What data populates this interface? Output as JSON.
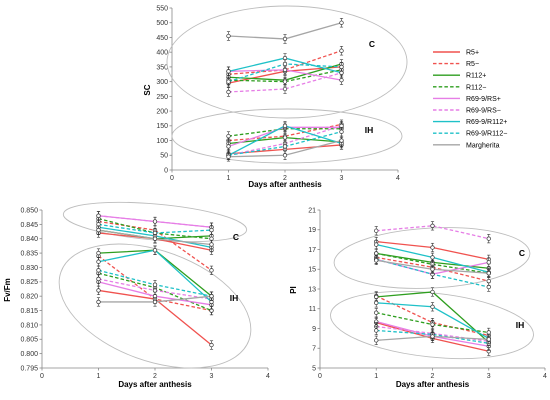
{
  "series_styles": [
    {
      "name": "R5+",
      "color": "#f0524f",
      "dash": false
    },
    {
      "name": "R5−",
      "color": "#f0524f",
      "dash": true
    },
    {
      "name": "R112+",
      "color": "#2e9e1f",
      "dash": false
    },
    {
      "name": "R112−",
      "color": "#2e9e1f",
      "dash": true
    },
    {
      "name": "R69-9/RS+",
      "color": "#e67ee6",
      "dash": false
    },
    {
      "name": "R69-9/RS−",
      "color": "#e67ee6",
      "dash": true
    },
    {
      "name": "R69-9/R112+",
      "color": "#1fc1c8",
      "dash": false
    },
    {
      "name": "R69-9/R112−",
      "color": "#1fc1c8",
      "dash": true
    },
    {
      "name": "Margherita",
      "color": "#a6a6a6",
      "dash": false
    }
  ],
  "chart_data": [
    {
      "type": "line",
      "ylabel": "SC",
      "xlabel": "Days after anthesis",
      "xlim": [
        0,
        4
      ],
      "xticks": [
        0,
        1,
        2,
        3,
        4
      ],
      "ylim": [
        0,
        550
      ],
      "yticks": [
        0,
        50,
        100,
        150,
        200,
        250,
        300,
        350,
        400,
        450,
        500,
        550
      ],
      "grid": false,
      "group_labels": [
        "C",
        "IH"
      ],
      "x": [
        1,
        2,
        3
      ],
      "series": [
        {
          "name": "R5+",
          "values": [
            295,
            335,
            350
          ]
        },
        {
          "name": "R5−",
          "values": [
            325,
            340,
            405
          ]
        },
        {
          "name": "R112+",
          "values": [
            315,
            305,
            360
          ]
        },
        {
          "name": "R112−",
          "values": [
            305,
            300,
            340
          ]
        },
        {
          "name": "R69-9/RS+",
          "values": [
            335,
            340,
            305
          ]
        },
        {
          "name": "R69-9/RS−",
          "values": [
            265,
            275,
            330
          ]
        },
        {
          "name": "R69-9/R112+",
          "values": [
            335,
            380,
            330
          ]
        },
        {
          "name": "R69-9/R112−",
          "values": [
            300,
            360,
            350
          ]
        },
        {
          "name": "Margherita",
          "values": [
            455,
            445,
            500
          ]
        },
        {
          "name": "R5+",
          "values": [
            55,
            70,
            85
          ]
        },
        {
          "name": "R5−",
          "values": [
            100,
            115,
            155
          ]
        },
        {
          "name": "R112+",
          "values": [
            90,
            110,
            95
          ]
        },
        {
          "name": "R112−",
          "values": [
            115,
            140,
            140
          ]
        },
        {
          "name": "R69-9/RS+",
          "values": [
            80,
            145,
            145
          ]
        },
        {
          "name": "R69-9/RS−",
          "values": [
            50,
            90,
            150
          ]
        },
        {
          "name": "R69-9/R112+",
          "values": [
            50,
            150,
            90
          ]
        },
        {
          "name": "R69-9/R112−",
          "values": [
            50,
            80,
            130
          ]
        },
        {
          "name": "Margherita",
          "values": [
            45,
            50,
            100
          ]
        }
      ]
    },
    {
      "type": "line",
      "ylabel": "Fv/Fm",
      "xlabel": "Days after anthesis",
      "xlim": [
        0,
        4
      ],
      "xticks": [
        0,
        1,
        2,
        3,
        4
      ],
      "ylim": [
        0.795,
        0.85
      ],
      "yticks": [
        0.795,
        0.8,
        0.805,
        0.81,
        0.815,
        0.82,
        0.825,
        0.83,
        0.835,
        0.84,
        0.845,
        0.85
      ],
      "ytick_labels": [
        "0.795",
        "0.800",
        "0.805",
        "0.810",
        "0.815",
        "0.820",
        "0.825",
        "0.830",
        "0.835",
        "0.840",
        "0.845",
        "0.850"
      ],
      "grid": false,
      "group_labels": [
        "C",
        "IH"
      ],
      "x": [
        1,
        2,
        3
      ],
      "series": [
        {
          "name": "R5+",
          "values": [
            0.842,
            0.84,
            0.836
          ]
        },
        {
          "name": "R5−",
          "values": [
            0.846,
            0.843,
            0.829
          ]
        },
        {
          "name": "R112+",
          "values": [
            0.843,
            0.84,
            0.841
          ]
        },
        {
          "name": "R112−",
          "values": [
            0.847,
            0.842,
            0.84
          ]
        },
        {
          "name": "R69-9/RS+",
          "values": [
            0.848,
            0.846,
            0.844
          ]
        },
        {
          "name": "R69-9/RS−",
          "values": [
            0.848,
            0.846,
            0.844
          ]
        },
        {
          "name": "R69-9/R112+",
          "values": [
            0.844,
            0.841,
            0.837
          ]
        },
        {
          "name": "R69-9/R112−",
          "values": [
            0.845,
            0.842,
            0.843
          ]
        },
        {
          "name": "Margherita",
          "values": [
            0.843,
            0.84,
            0.838
          ]
        },
        {
          "name": "R5+",
          "values": [
            0.822,
            0.819,
            0.803
          ]
        },
        {
          "name": "R5−",
          "values": [
            0.834,
            0.819,
            0.815
          ]
        },
        {
          "name": "R112+",
          "values": [
            0.835,
            0.836,
            0.82
          ]
        },
        {
          "name": "R112−",
          "values": [
            0.828,
            0.823,
            0.815
          ]
        },
        {
          "name": "R69-9/RS+",
          "values": [
            0.825,
            0.82,
            0.817
          ]
        },
        {
          "name": "R69-9/RS−",
          "values": [
            0.826,
            0.822,
            0.819
          ]
        },
        {
          "name": "R69-9/R112+",
          "values": [
            0.832,
            0.836,
            0.818
          ]
        },
        {
          "name": "R69-9/R112−",
          "values": [
            0.829,
            0.824,
            0.82
          ]
        },
        {
          "name": "Margherita",
          "values": [
            0.818,
            0.818,
            0.82
          ]
        }
      ]
    },
    {
      "type": "line",
      "ylabel": "PI",
      "xlabel": "Days after anthesis",
      "xlim": [
        0,
        4
      ],
      "xticks": [
        0,
        1,
        2,
        3,
        4
      ],
      "ylim": [
        5,
        21
      ],
      "yticks": [
        5,
        7,
        9,
        11,
        13,
        15,
        17,
        19,
        21
      ],
      "grid": false,
      "group_labels": [
        "C",
        "IH"
      ],
      "x": [
        1,
        2,
        3
      ],
      "series": [
        {
          "name": "R5+",
          "values": [
            17.8,
            17.2,
            16.0
          ]
        },
        {
          "name": "R5−",
          "values": [
            16.2,
            15.2,
            13.8
          ]
        },
        {
          "name": "R112+",
          "values": [
            16.6,
            15.7,
            15.1
          ]
        },
        {
          "name": "R112−",
          "values": [
            16.6,
            15.5,
            14.6
          ]
        },
        {
          "name": "R69-9/RS+",
          "values": [
            16.0,
            14.5,
            15.7
          ]
        },
        {
          "name": "R69-9/RS−",
          "values": [
            18.9,
            19.4,
            18.1
          ]
        },
        {
          "name": "R69-9/R112+",
          "values": [
            17.5,
            16.2,
            14.7
          ]
        },
        {
          "name": "R69-9/R112−",
          "values": [
            16.0,
            14.5,
            13.2
          ]
        },
        {
          "name": "Margherita",
          "values": [
            15.9,
            15.0,
            14.6
          ]
        },
        {
          "name": "R5+",
          "values": [
            9.6,
            8.0,
            6.7
          ]
        },
        {
          "name": "R5−",
          "values": [
            12.3,
            9.6,
            8.3
          ]
        },
        {
          "name": "R112+",
          "values": [
            12.2,
            12.7,
            7.6
          ]
        },
        {
          "name": "R112−",
          "values": [
            10.6,
            9.4,
            8.6
          ]
        },
        {
          "name": "R69-9/RS+",
          "values": [
            9.7,
            8.2,
            7.2
          ]
        },
        {
          "name": "R69-9/RS−",
          "values": [
            9.2,
            8.5,
            7.7
          ]
        },
        {
          "name": "R69-9/R112+",
          "values": [
            11.6,
            11.2,
            8.0
          ]
        },
        {
          "name": "R69-9/R112−",
          "values": [
            8.8,
            8.4,
            7.5
          ]
        },
        {
          "name": "Margherita",
          "values": [
            7.8,
            8.2,
            7.9
          ]
        }
      ]
    }
  ]
}
